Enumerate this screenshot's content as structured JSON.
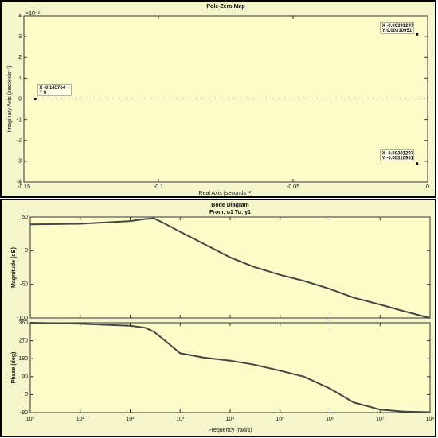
{
  "chart_data": [
    {
      "type": "scatter",
      "title": "Pole-Zero Map",
      "xlabel": "Real Axis (seconds⁻¹)",
      "ylabel": "Imaginary Axis (seconds⁻¹)",
      "y_exponent": "×10⁻³",
      "x": [
        -0.145764,
        -0.00391297,
        -0.00391297
      ],
      "values": [
        0,
        3.10951,
        -3.10951
      ],
      "value_labels": [
        [
          "X -0.145764",
          "Y 0"
        ],
        [
          "X -0.00391297",
          "Y 0.00310951"
        ],
        [
          "X -0.00391297",
          "Y -0.00310951"
        ]
      ],
      "color": "#000000",
      "xlim": [
        -0.15,
        0
      ],
      "ylim": [
        -4,
        4
      ],
      "xticks": [
        -0.15,
        -0.1,
        -0.05,
        0
      ],
      "yticks": [
        -4,
        -3,
        -2,
        -1,
        0,
        1,
        2,
        3,
        4
      ]
    },
    {
      "type": "line",
      "title": "Bode Diagram",
      "subtitle": "From: u1  To: y1",
      "ylabel": "Magnitude (dB)",
      "xscale": "log",
      "x": [
        1,
        10,
        100,
        200,
        300,
        500,
        1000,
        3000,
        10000,
        30000,
        100000,
        300000,
        1000000,
        3000000,
        10000000,
        30000000,
        100000000
      ],
      "values": [
        39,
        40,
        44,
        47,
        48,
        40,
        28,
        10,
        -10,
        -24,
        -36,
        -45,
        -57,
        -70,
        -80,
        -90,
        -100
      ],
      "color": "#454545",
      "xlim": [
        1,
        100000000
      ],
      "ylim": [
        -100,
        50
      ],
      "xticks": [
        1,
        10,
        100,
        1000,
        10000,
        100000,
        1000000,
        10000000,
        100000000
      ],
      "yticks": [
        -100,
        -50,
        0,
        50
      ]
    },
    {
      "type": "line",
      "ylabel": "Phase (deg)",
      "xlabel": "Frequency  (rad/s)",
      "xscale": "log",
      "x": [
        1,
        10,
        100,
        200,
        300,
        500,
        1000,
        3000,
        10000,
        30000,
        100000,
        300000,
        1000000,
        3000000,
        10000000,
        30000000,
        100000000
      ],
      "values": [
        360,
        355,
        345,
        335,
        315,
        270,
        207,
        185,
        170,
        150,
        120,
        90,
        30,
        -40,
        -75,
        -85,
        -88
      ],
      "color": "#454545",
      "xlim": [
        1,
        100000000
      ],
      "ylim": [
        -90,
        360
      ],
      "xticks": [
        {
          "value": 1,
          "label": "10⁰"
        },
        {
          "value": 10,
          "label": "10¹"
        },
        {
          "value": 100,
          "label": "10²"
        },
        {
          "value": 1000,
          "label": "10³"
        },
        {
          "value": 10000,
          "label": "10⁴"
        },
        {
          "value": 100000,
          "label": "10⁵"
        },
        {
          "value": 1000000,
          "label": "10⁶"
        },
        {
          "value": 10000000,
          "label": "10⁷"
        },
        {
          "value": 100000000,
          "label": "10⁸"
        }
      ],
      "yticks": [
        -90,
        0,
        90,
        180,
        270,
        360
      ]
    }
  ]
}
